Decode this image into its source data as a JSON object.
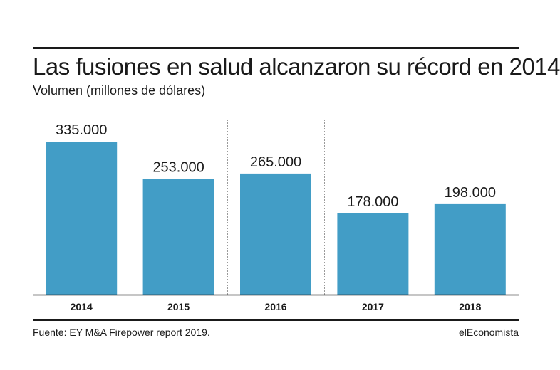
{
  "header": {
    "title": "Las fusiones en salud alcanzaron su récord en 2014",
    "subtitle": "Volumen (millones de dólares)"
  },
  "footer": {
    "source": "Fuente:  EY M&A Firepower report 2019.",
    "brand": "elEconomista"
  },
  "colors": {
    "bar": "#429dc6",
    "text": "#1a1a1a",
    "divider": "#9a9a9a",
    "baseline": "#1a1a1a"
  },
  "chart_data": {
    "type": "bar",
    "title": "Las fusiones en salud alcanzaron su récord en 2014",
    "subtitle": "Volumen (millones de dólares)",
    "categories": [
      "2014",
      "2015",
      "2016",
      "2017",
      "2018"
    ],
    "values": [
      335000,
      253000,
      265000,
      178000,
      198000
    ],
    "value_labels": [
      "335.000",
      "253.000",
      "265.000",
      "178.000",
      "198.000"
    ],
    "ylim": [
      0,
      335000
    ],
    "grid": false,
    "legend": "none"
  }
}
